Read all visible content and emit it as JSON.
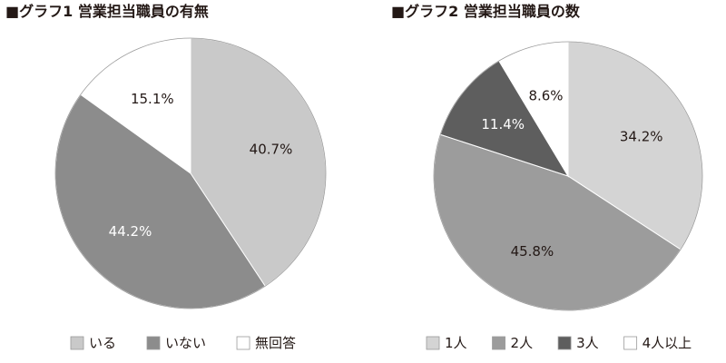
{
  "chart_data": [
    {
      "type": "pie",
      "title": "■グラフ1 営業担当職員の有無",
      "categories": [
        "いる",
        "いない",
        "無回答"
      ],
      "values": [
        40.7,
        44.2,
        15.1
      ],
      "colors": [
        "#c9c9c9",
        "#8c8c8c",
        "#ffffff"
      ],
      "label_colors": [
        "#231815",
        "#ffffff",
        "#231815"
      ],
      "unit": "%",
      "start_angle": "12 o'clock",
      "direction": "clockwise",
      "legend_position": "bottom"
    },
    {
      "type": "pie",
      "title": "■グラフ2 営業担当職員の数",
      "categories": [
        "1人",
        "2人",
        "3人",
        "4人以上"
      ],
      "values": [
        34.2,
        45.8,
        11.4,
        8.6
      ],
      "colors": [
        "#d4d4d4",
        "#9c9c9c",
        "#5e5e5e",
        "#ffffff"
      ],
      "label_colors": [
        "#231815",
        "#231815",
        "#ffffff",
        "#231815"
      ],
      "unit": "%",
      "start_angle": "12 o'clock",
      "direction": "clockwise",
      "legend_position": "bottom"
    }
  ]
}
